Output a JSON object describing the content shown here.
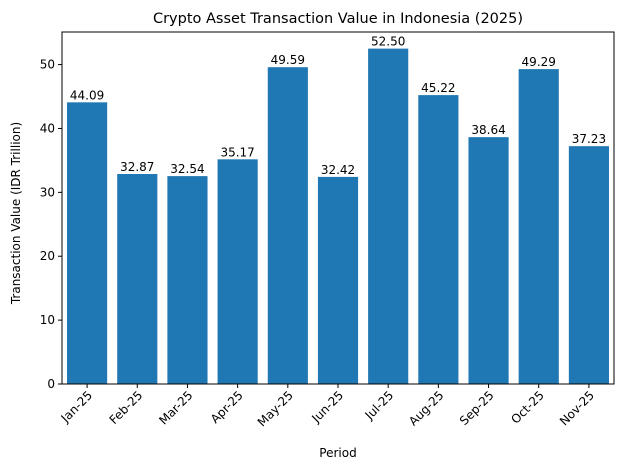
{
  "chart_data": {
    "type": "bar",
    "title": "Crypto Asset Transaction Value in Indonesia (2025)",
    "xlabel": "Period",
    "ylabel": "Transaction Value (IDR Trillion)",
    "categories": [
      "Jan-25",
      "Feb-25",
      "Mar-25",
      "Apr-25",
      "May-25",
      "Jun-25",
      "Jul-25",
      "Aug-25",
      "Sep-25",
      "Oct-25",
      "Nov-25"
    ],
    "values": [
      44.09,
      32.87,
      32.54,
      35.17,
      49.59,
      32.42,
      52.5,
      45.22,
      38.64,
      49.29,
      37.23
    ],
    "value_labels": [
      "44.09",
      "32.87",
      "32.54",
      "35.17",
      "49.59",
      "32.42",
      "52.50",
      "45.22",
      "38.64",
      "49.29",
      "37.23"
    ],
    "ylim": [
      0,
      55.1
    ],
    "yticks": [
      0,
      10,
      20,
      30,
      40,
      50
    ],
    "grid": false,
    "legend": "none",
    "bar_color": "#1f77b4"
  }
}
